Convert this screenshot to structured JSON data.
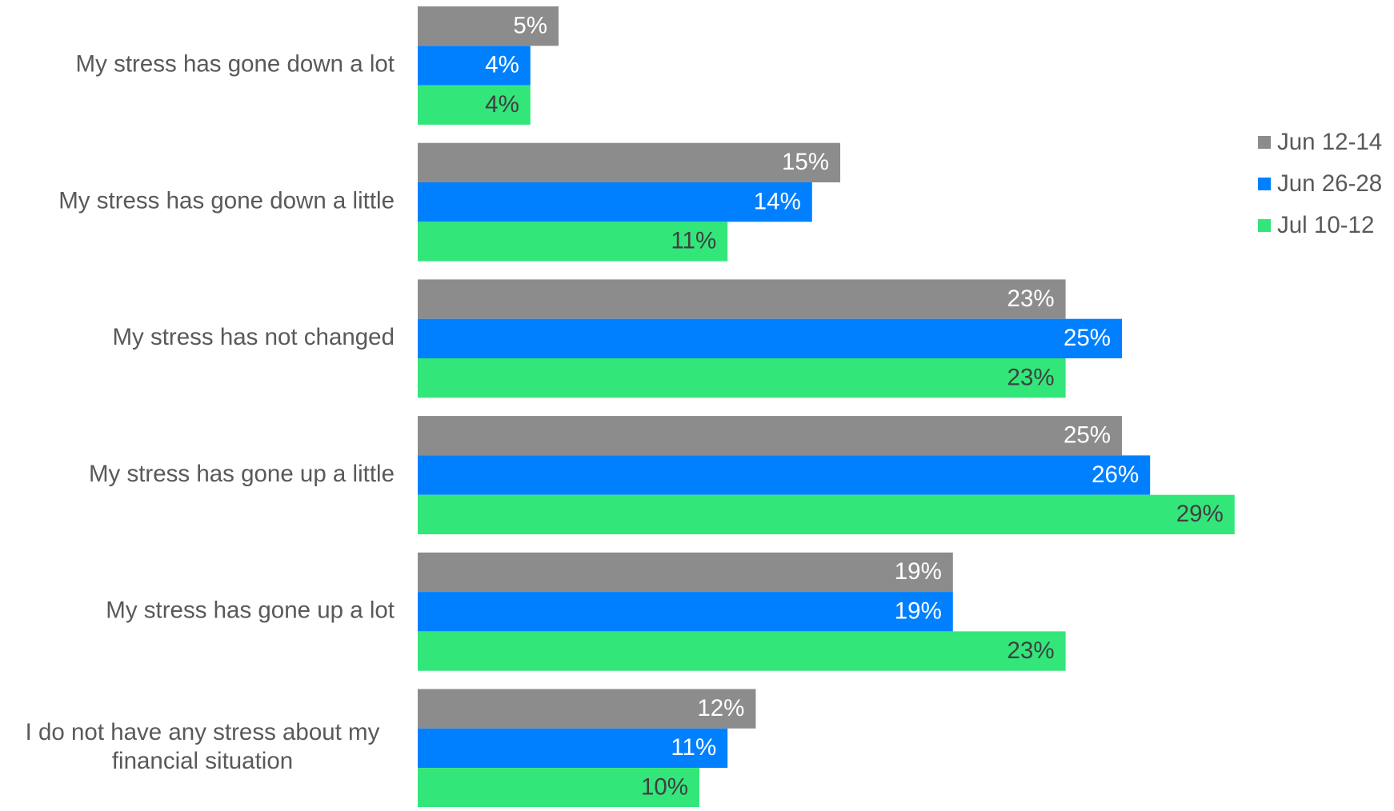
{
  "chart_data": {
    "type": "bar",
    "orientation": "horizontal",
    "categories": [
      "My stress has gone down a lot",
      "My stress has gone down a little",
      "My stress has not changed",
      "My stress has gone up a little",
      "My stress has gone up a lot",
      "I do not have any stress about my financial situation"
    ],
    "series": [
      {
        "name": "Jun 12-14",
        "color": "#8c8c8c",
        "values": [
          5,
          15,
          23,
          25,
          19,
          12
        ],
        "labels": [
          "5%",
          "15%",
          "23%",
          "25%",
          "19%",
          "12%"
        ]
      },
      {
        "name": "Jun 26-28",
        "color": "#0080ff",
        "values": [
          4,
          14,
          25,
          26,
          19,
          11
        ],
        "labels": [
          "4%",
          "14%",
          "25%",
          "26%",
          "19%",
          "11%"
        ]
      },
      {
        "name": "Jul 10-12",
        "color": "#33e67a",
        "values": [
          4,
          11,
          23,
          29,
          23,
          10
        ],
        "labels": [
          "4%",
          "11%",
          "23%",
          "29%",
          "23%",
          "10%"
        ]
      }
    ],
    "value_unit": "%",
    "legend_position": "right",
    "grid": false,
    "data_labels": "inside-end"
  }
}
